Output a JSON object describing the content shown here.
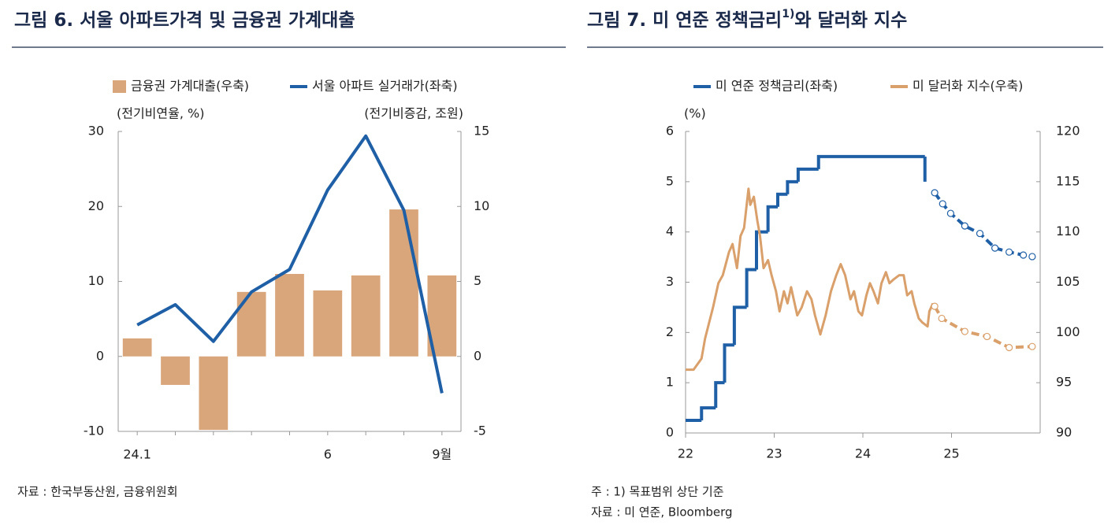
{
  "chart_data": [
    {
      "type": "combo",
      "title": "그림 6. 서울 아파트가격 및 금융권 가계대출",
      "y_label": "(전기비연율, %)",
      "y2_label": "(전기비증감, 조원)",
      "categories": [
        "24.1",
        null,
        null,
        null,
        null,
        "6",
        null,
        null,
        "9월"
      ],
      "ylim": [
        -10,
        30
      ],
      "yticks": [
        -10,
        0,
        10,
        20,
        30
      ],
      "y2lim": [
        -5,
        15
      ],
      "y2ticks": [
        -5,
        0,
        5,
        10,
        15
      ],
      "series": [
        {
          "name": "금융권 가계대출(우축)",
          "kind": "bar",
          "axis": "y2",
          "color": "#d8a67a",
          "values": [
            1.2,
            -1.9,
            -4.9,
            4.3,
            5.5,
            4.4,
            5.4,
            9.8,
            5.4
          ]
        },
        {
          "name": "서울 아파트 실거래가(좌축)",
          "kind": "line",
          "axis": "y",
          "color": "#1f5fa6",
          "values": [
            4.2,
            6.9,
            2.0,
            8.6,
            11.6,
            22.2,
            29.4,
            19.5,
            -4.9
          ]
        }
      ],
      "notes": [
        "자료 : 한국부동산원, 금융위원회"
      ]
    },
    {
      "type": "line",
      "title": "그림 7. 미 연준 정책금리",
      "title_superscript": "1)",
      "title_end": "와 달러화 지수",
      "y_label": "(%)",
      "xlim": [
        22,
        26
      ],
      "xticks": [
        22,
        23,
        24,
        25
      ],
      "ylim": [
        0,
        6
      ],
      "yticks": [
        0,
        1,
        2,
        3,
        4,
        5,
        6
      ],
      "y2lim": [
        90,
        120
      ],
      "y2ticks": [
        90,
        95,
        100,
        105,
        110,
        115,
        120
      ],
      "series": [
        {
          "name": "미 연준 정책금리(좌축)",
          "kind": "step",
          "axis": "y",
          "color": "#1f5fa6",
          "x": [
            22.0,
            22.18,
            22.34,
            22.44,
            22.55,
            22.69,
            22.8,
            22.93,
            23.04,
            23.15,
            23.27,
            23.5,
            24.7
          ],
          "values": [
            0.25,
            0.5,
            1.0,
            1.75,
            2.5,
            3.25,
            4.0,
            4.5,
            4.75,
            5.0,
            5.25,
            5.5,
            5.0
          ],
          "forecast": {
            "x": [
              24.81,
              24.9,
              24.99,
              25.15,
              25.32,
              25.49,
              25.65,
              25.81,
              25.91
            ],
            "values": [
              4.78,
              4.56,
              4.37,
              4.12,
              3.97,
              3.68,
              3.6,
              3.54,
              3.51
            ]
          }
        },
        {
          "name": "미 달러화 지수(우축)",
          "kind": "line",
          "axis": "y2",
          "color": "#d9a06b",
          "x": [
            22.0,
            22.09,
            22.18,
            22.22,
            22.31,
            22.37,
            22.42,
            22.49,
            22.53,
            22.58,
            22.62,
            22.66,
            22.71,
            22.73,
            22.77,
            22.81,
            22.84,
            22.88,
            22.93,
            22.97,
            23.02,
            23.06,
            23.11,
            23.15,
            23.19,
            23.26,
            23.31,
            23.37,
            23.42,
            23.46,
            23.52,
            23.58,
            23.64,
            23.7,
            23.75,
            23.8,
            23.86,
            23.9,
            23.95,
            23.99,
            24.04,
            24.08,
            24.12,
            24.17,
            24.21,
            24.26,
            24.3,
            24.35,
            24.41,
            24.46,
            24.5,
            24.55,
            24.58,
            24.63,
            24.67,
            24.73,
            24.75,
            24.79
          ],
          "values": [
            96.3,
            96.3,
            97.4,
            99.4,
            102.5,
            104.9,
            105.7,
            108.0,
            108.8,
            106.4,
            109.6,
            110.4,
            114.3,
            112.7,
            113.5,
            111.1,
            109.6,
            106.4,
            107.2,
            105.7,
            104.1,
            102.1,
            104.1,
            102.9,
            104.5,
            101.7,
            102.5,
            104.1,
            103.3,
            101.7,
            99.8,
            101.7,
            104.1,
            105.7,
            106.8,
            105.7,
            103.3,
            104.1,
            102.1,
            101.7,
            103.7,
            104.9,
            104.1,
            102.9,
            104.9,
            106.0,
            104.9,
            105.3,
            105.7,
            105.7,
            103.7,
            104.1,
            102.9,
            101.4,
            101.0,
            100.6,
            102.1,
            102.9
          ],
          "forecast": {
            "x": [
              24.81,
              24.89,
              25.15,
              25.4,
              25.65,
              25.91
            ],
            "values": [
              102.6,
              101.4,
              100.1,
              99.6,
              98.5,
              98.6
            ]
          }
        }
      ],
      "notes": [
        "주 : 1) 목표범위 상단 기준",
        "자료 : 미 연준, Bloomberg"
      ]
    }
  ]
}
